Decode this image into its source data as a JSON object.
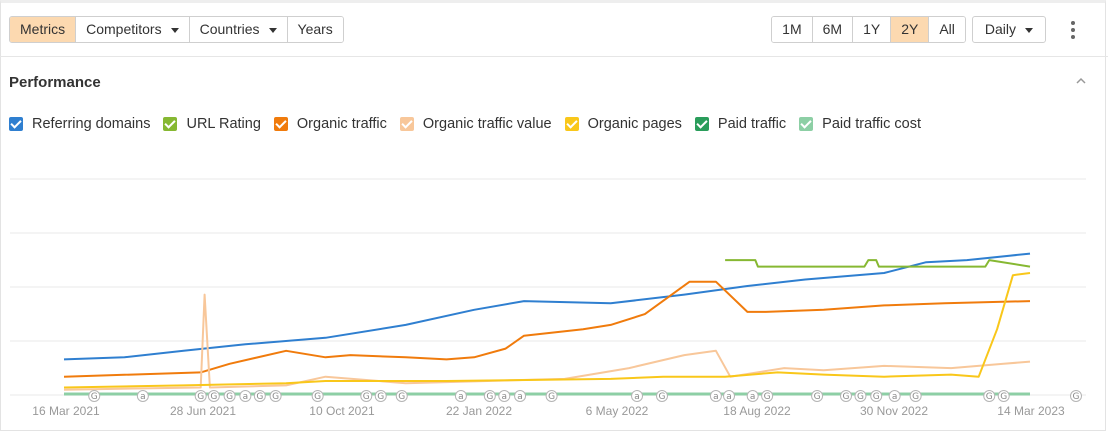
{
  "toolbar": {
    "tabs": [
      {
        "label": "Metrics",
        "active": true,
        "dropdown": false
      },
      {
        "label": "Competitors",
        "active": false,
        "dropdown": true
      },
      {
        "label": "Countries",
        "active": false,
        "dropdown": true
      },
      {
        "label": "Years",
        "active": false,
        "dropdown": false
      }
    ],
    "ranges": [
      {
        "label": "1M",
        "active": false
      },
      {
        "label": "6M",
        "active": false
      },
      {
        "label": "1Y",
        "active": false
      },
      {
        "label": "2Y",
        "active": true
      },
      {
        "label": "All",
        "active": false
      }
    ],
    "interval": "Daily"
  },
  "section": {
    "title": "Performance"
  },
  "colors": {
    "active_bg": "#fcd9b0",
    "referring_domains": "#2f7fd0",
    "url_rating": "#86b832",
    "organic_traffic": "#f07b0c",
    "organic_traffic_value": "#f8c79a",
    "organic_pages": "#f9c71a",
    "paid_traffic": "#2a9d5b",
    "paid_traffic_cost": "#8dcfa5"
  },
  "chart_data": {
    "type": "line",
    "x_range": [
      "2021-03-16",
      "2023-03-21"
    ],
    "grid": true,
    "legend": "top-left",
    "x_ticks": [
      "16 Mar 2021",
      "28 Jun 2021",
      "10 Oct 2021",
      "22 Jan 2022",
      "6 May 2022",
      "18 Aug 2022",
      "30 Nov 2022",
      "14 Mar 2023"
    ],
    "series": [
      {
        "name": "Referring domains",
        "color": "#2f7fd0",
        "x": [
          "2021-03-16",
          "2021-05-01",
          "2021-06-15",
          "2021-08-01",
          "2021-10-01",
          "2021-12-01",
          "2022-01-22",
          "2022-03-01",
          "2022-05-06",
          "2022-07-01",
          "2022-08-18",
          "2022-10-01",
          "2022-11-30",
          "2023-01-01",
          "2023-02-01",
          "2023-03-21"
        ],
        "y": [
          0.16,
          0.17,
          0.2,
          0.23,
          0.26,
          0.32,
          0.39,
          0.43,
          0.42,
          0.46,
          0.5,
          0.53,
          0.56,
          0.61,
          0.62,
          0.65
        ]
      },
      {
        "name": "URL Rating",
        "color": "#86b832",
        "x": [
          "2022-08-01",
          "2022-08-24",
          "2022-08-26",
          "2022-11-15",
          "2022-11-18",
          "2022-11-24",
          "2022-11-26",
          "2023-02-15",
          "2023-02-18",
          "2023-03-21"
        ],
        "y": [
          0.62,
          0.62,
          0.59,
          0.59,
          0.62,
          0.62,
          0.59,
          0.59,
          0.62,
          0.59
        ]
      },
      {
        "name": "Organic traffic",
        "color": "#f07b0c",
        "x": [
          "2021-03-16",
          "2021-06-28",
          "2021-07-20",
          "2021-09-01",
          "2021-10-01",
          "2021-10-20",
          "2021-12-01",
          "2022-01-01",
          "2022-01-22",
          "2022-02-15",
          "2022-03-01",
          "2022-04-15",
          "2022-05-06",
          "2022-06-01",
          "2022-07-05",
          "2022-07-25",
          "2022-08-18",
          "2022-09-01",
          "2022-10-15",
          "2022-11-30",
          "2023-01-15",
          "2023-03-21"
        ],
        "y": [
          0.08,
          0.1,
          0.14,
          0.2,
          0.17,
          0.18,
          0.17,
          0.16,
          0.17,
          0.21,
          0.27,
          0.3,
          0.32,
          0.37,
          0.52,
          0.52,
          0.38,
          0.38,
          0.39,
          0.41,
          0.42,
          0.43
        ]
      },
      {
        "name": "Organic traffic value",
        "color": "#f8c79a",
        "x": [
          "2021-03-16",
          "2021-06-28",
          "2021-07-01",
          "2021-07-05",
          "2021-09-01",
          "2021-10-01",
          "2021-12-01",
          "2022-02-01",
          "2022-04-01",
          "2022-05-20",
          "2022-07-01",
          "2022-07-25",
          "2022-08-05",
          "2022-09-15",
          "2022-10-15",
          "2022-11-30",
          "2023-01-20",
          "2023-03-01",
          "2023-03-21"
        ],
        "y": [
          0.02,
          0.03,
          0.46,
          0.03,
          0.04,
          0.08,
          0.05,
          0.06,
          0.07,
          0.12,
          0.18,
          0.2,
          0.08,
          0.12,
          0.11,
          0.13,
          0.12,
          0.14,
          0.15
        ]
      },
      {
        "name": "Organic pages",
        "color": "#f9c71a",
        "x": [
          "2021-03-16",
          "2021-06-15",
          "2021-09-01",
          "2021-10-01",
          "2022-01-01",
          "2022-05-06",
          "2022-06-15",
          "2022-08-01",
          "2022-09-10",
          "2022-10-15",
          "2022-11-30",
          "2023-01-20",
          "2023-02-10",
          "2023-02-24",
          "2023-03-08",
          "2023-03-21"
        ],
        "y": [
          0.03,
          0.04,
          0.05,
          0.06,
          0.06,
          0.07,
          0.08,
          0.08,
          0.1,
          0.09,
          0.08,
          0.09,
          0.08,
          0.3,
          0.55,
          0.56
        ]
      },
      {
        "name": "Paid traffic",
        "color": "#2a9d5b",
        "x": [
          "2021-03-16",
          "2023-03-21"
        ],
        "y": [
          0,
          0
        ]
      },
      {
        "name": "Paid traffic cost",
        "color": "#8dcfa5",
        "x": [
          "2021-03-16",
          "2023-03-21"
        ],
        "y": [
          0,
          0
        ]
      }
    ],
    "annotations": [
      {
        "date": "2021-04-08",
        "kind": "G"
      },
      {
        "date": "2021-05-15",
        "kind": "a"
      },
      {
        "date": "2021-06-28",
        "kind": "G"
      },
      {
        "date": "2021-07-08",
        "kind": "G"
      },
      {
        "date": "2021-07-20",
        "kind": "G"
      },
      {
        "date": "2021-08-01",
        "kind": "a"
      },
      {
        "date": "2021-08-12",
        "kind": "G"
      },
      {
        "date": "2021-08-24",
        "kind": "G"
      },
      {
        "date": "2021-09-25",
        "kind": "G"
      },
      {
        "date": "2021-11-01",
        "kind": "G"
      },
      {
        "date": "2021-11-12",
        "kind": "G"
      },
      {
        "date": "2021-11-28",
        "kind": "G"
      },
      {
        "date": "2022-01-12",
        "kind": "a"
      },
      {
        "date": "2022-02-03",
        "kind": "G"
      },
      {
        "date": "2022-02-14",
        "kind": "a"
      },
      {
        "date": "2022-02-26",
        "kind": "a"
      },
      {
        "date": "2022-03-22",
        "kind": "G"
      },
      {
        "date": "2022-05-26",
        "kind": "a"
      },
      {
        "date": "2022-06-14",
        "kind": "G"
      },
      {
        "date": "2022-07-25",
        "kind": "a"
      },
      {
        "date": "2022-08-04",
        "kind": "a"
      },
      {
        "date": "2022-08-22",
        "kind": "a"
      },
      {
        "date": "2022-09-02",
        "kind": "G"
      },
      {
        "date": "2022-10-10",
        "kind": "G"
      },
      {
        "date": "2022-11-01",
        "kind": "G"
      },
      {
        "date": "2022-11-12",
        "kind": "G"
      },
      {
        "date": "2022-11-24",
        "kind": "G"
      },
      {
        "date": "2022-12-08",
        "kind": "a"
      },
      {
        "date": "2022-12-24",
        "kind": "G"
      },
      {
        "date": "2023-02-18",
        "kind": "G"
      },
      {
        "date": "2023-03-01",
        "kind": "G"
      },
      {
        "date": "2023-04-25",
        "kind": "G"
      }
    ]
  }
}
